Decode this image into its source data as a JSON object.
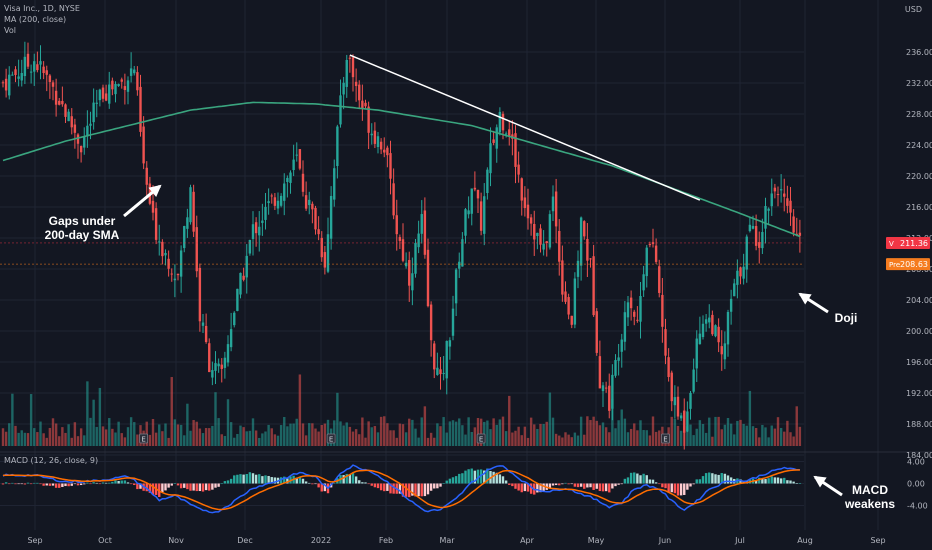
{
  "legend": {
    "symbol_line": "Visa Inc., 1D, NYSE",
    "ma_line": "MA (200, close)",
    "vol_line": "Vol",
    "macd_line": "MACD (12, 26, close, 9)"
  },
  "currency": "USD",
  "badges": {
    "last": {
      "prefix": "V",
      "value": "211.36",
      "color": "#f23645"
    },
    "pre": {
      "prefix": "Pre",
      "value": "208.63",
      "color": "#f57c1f"
    }
  },
  "annotations": {
    "gap": [
      "Gaps under",
      "200-day SMA"
    ],
    "doji": [
      "Doji"
    ],
    "macd": [
      "MACD",
      "weakens"
    ]
  },
  "colors": {
    "bg": "#131722",
    "grid": "#1f2433",
    "up": "#26a69a",
    "down": "#ef5350",
    "ma": "#3aa57f",
    "macd": "#2962ff",
    "signal": "#ff6d00",
    "text": "#b2b5be"
  },
  "chart_data": {
    "type": "candlestick",
    "x_axis": [
      "Sep",
      "Oct",
      "Nov",
      "Dec",
      "2022",
      "Feb",
      "Mar",
      "Apr",
      "May",
      "Jun",
      "Jul",
      "Aug",
      "Sep"
    ],
    "price_axis": {
      "ticks": [
        "236.00",
        "232.00",
        "228.00",
        "224.00",
        "220.00",
        "216.00",
        "212.00",
        "208.00",
        "204.00",
        "200.00",
        "196.00",
        "192.00",
        "188.00",
        "184.00"
      ],
      "range": [
        182,
        238
      ]
    },
    "macd_axis": {
      "ticks": [
        "4.00",
        "0.00",
        "-4.00"
      ],
      "range": [
        -6,
        5
      ]
    },
    "price_anchors": [
      [
        0,
        232
      ],
      [
        10,
        235
      ],
      [
        18,
        230
      ],
      [
        25,
        224
      ],
      [
        32,
        231
      ],
      [
        38,
        232
      ],
      [
        42,
        234
      ],
      [
        45,
        221
      ],
      [
        48,
        214
      ],
      [
        52,
        210
      ],
      [
        56,
        207
      ],
      [
        60,
        219
      ],
      [
        63,
        202
      ],
      [
        66,
        196
      ],
      [
        70,
        194
      ],
      [
        73,
        201
      ],
      [
        76,
        206
      ],
      [
        80,
        213
      ],
      [
        85,
        216
      ],
      [
        90,
        219
      ],
      [
        94,
        222
      ],
      [
        97,
        217
      ],
      [
        100,
        214
      ],
      [
        103,
        209
      ],
      [
        106,
        222
      ],
      [
        110,
        236
      ],
      [
        114,
        230
      ],
      [
        118,
        226
      ],
      [
        122,
        224
      ],
      [
        126,
        213
      ],
      [
        130,
        207
      ],
      [
        134,
        214
      ],
      [
        137,
        198
      ],
      [
        140,
        193
      ],
      [
        143,
        200
      ],
      [
        146,
        210
      ],
      [
        150,
        219
      ],
      [
        153,
        214
      ],
      [
        156,
        223
      ],
      [
        159,
        228
      ],
      [
        162,
        226
      ],
      [
        166,
        218
      ],
      [
        170,
        213
      ],
      [
        173,
        210
      ],
      [
        176,
        217
      ],
      [
        179,
        206
      ],
      [
        182,
        201
      ],
      [
        185,
        214
      ],
      [
        188,
        208
      ],
      [
        191,
        194
      ],
      [
        194,
        191
      ],
      [
        197,
        198
      ],
      [
        200,
        205
      ],
      [
        203,
        201
      ],
      [
        206,
        212
      ],
      [
        209,
        209
      ],
      [
        212,
        196
      ],
      [
        215,
        190
      ],
      [
        218,
        188
      ],
      [
        221,
        196
      ],
      [
        224,
        202
      ],
      [
        227,
        201
      ],
      [
        230,
        196
      ],
      [
        233,
        204
      ],
      [
        236,
        208
      ],
      [
        239,
        213
      ],
      [
        242,
        212
      ],
      [
        245,
        217
      ],
      [
        248,
        219
      ],
      [
        250,
        216
      ],
      [
        252,
        214
      ],
      [
        255,
        211
      ]
    ],
    "ma200_anchors": [
      [
        0,
        222
      ],
      [
        20,
        224.5
      ],
      [
        40,
        226.5
      ],
      [
        60,
        228.5
      ],
      [
        80,
        229.5
      ],
      [
        100,
        229.3
      ],
      [
        120,
        228.5
      ],
      [
        150,
        226.5
      ],
      [
        175,
        223.6
      ],
      [
        195,
        221.3
      ],
      [
        215,
        218.3
      ],
      [
        235,
        215.3
      ],
      [
        255,
        212.2
      ]
    ],
    "trendline": {
      "start": [
        111,
        235.6
      ],
      "end": [
        223,
        216.9
      ]
    },
    "macd_anchors": [
      [
        0,
        1.5
      ],
      [
        10,
        1.5
      ],
      [
        20,
        0.3
      ],
      [
        30,
        0.5
      ],
      [
        40,
        1.3
      ],
      [
        45,
        -0.5
      ],
      [
        50,
        -3
      ],
      [
        55,
        -2.2
      ],
      [
        62,
        -4.5
      ],
      [
        68,
        -5.3
      ],
      [
        72,
        -4
      ],
      [
        80,
        -0.8
      ],
      [
        88,
        0.5
      ],
      [
        95,
        2
      ],
      [
        100,
        1.2
      ],
      [
        104,
        -1
      ],
      [
        108,
        2
      ],
      [
        112,
        3.2
      ],
      [
        118,
        2.2
      ],
      [
        125,
        -0.5
      ],
      [
        130,
        -3
      ],
      [
        135,
        -5
      ],
      [
        140,
        -4.8
      ],
      [
        145,
        -2.8
      ],
      [
        150,
        0.2
      ],
      [
        156,
        2.8
      ],
      [
        160,
        3.2
      ],
      [
        165,
        1
      ],
      [
        170,
        -1
      ],
      [
        175,
        -1.5
      ],
      [
        180,
        -0.8
      ],
      [
        188,
        -2.5
      ],
      [
        194,
        -4.2
      ],
      [
        198,
        -3.5
      ],
      [
        202,
        -1
      ],
      [
        206,
        -0.3
      ],
      [
        210,
        -1
      ],
      [
        214,
        -3.2
      ],
      [
        218,
        -4.8
      ],
      [
        222,
        -3.2
      ],
      [
        226,
        -1
      ],
      [
        232,
        0.5
      ],
      [
        238,
        0.5
      ],
      [
        244,
        1.8
      ],
      [
        250,
        2.9
      ],
      [
        254,
        2.4
      ]
    ],
    "earnings_markers": [
      45,
      105,
      153,
      212
    ],
    "n_bars": 256,
    "seed": 7
  }
}
